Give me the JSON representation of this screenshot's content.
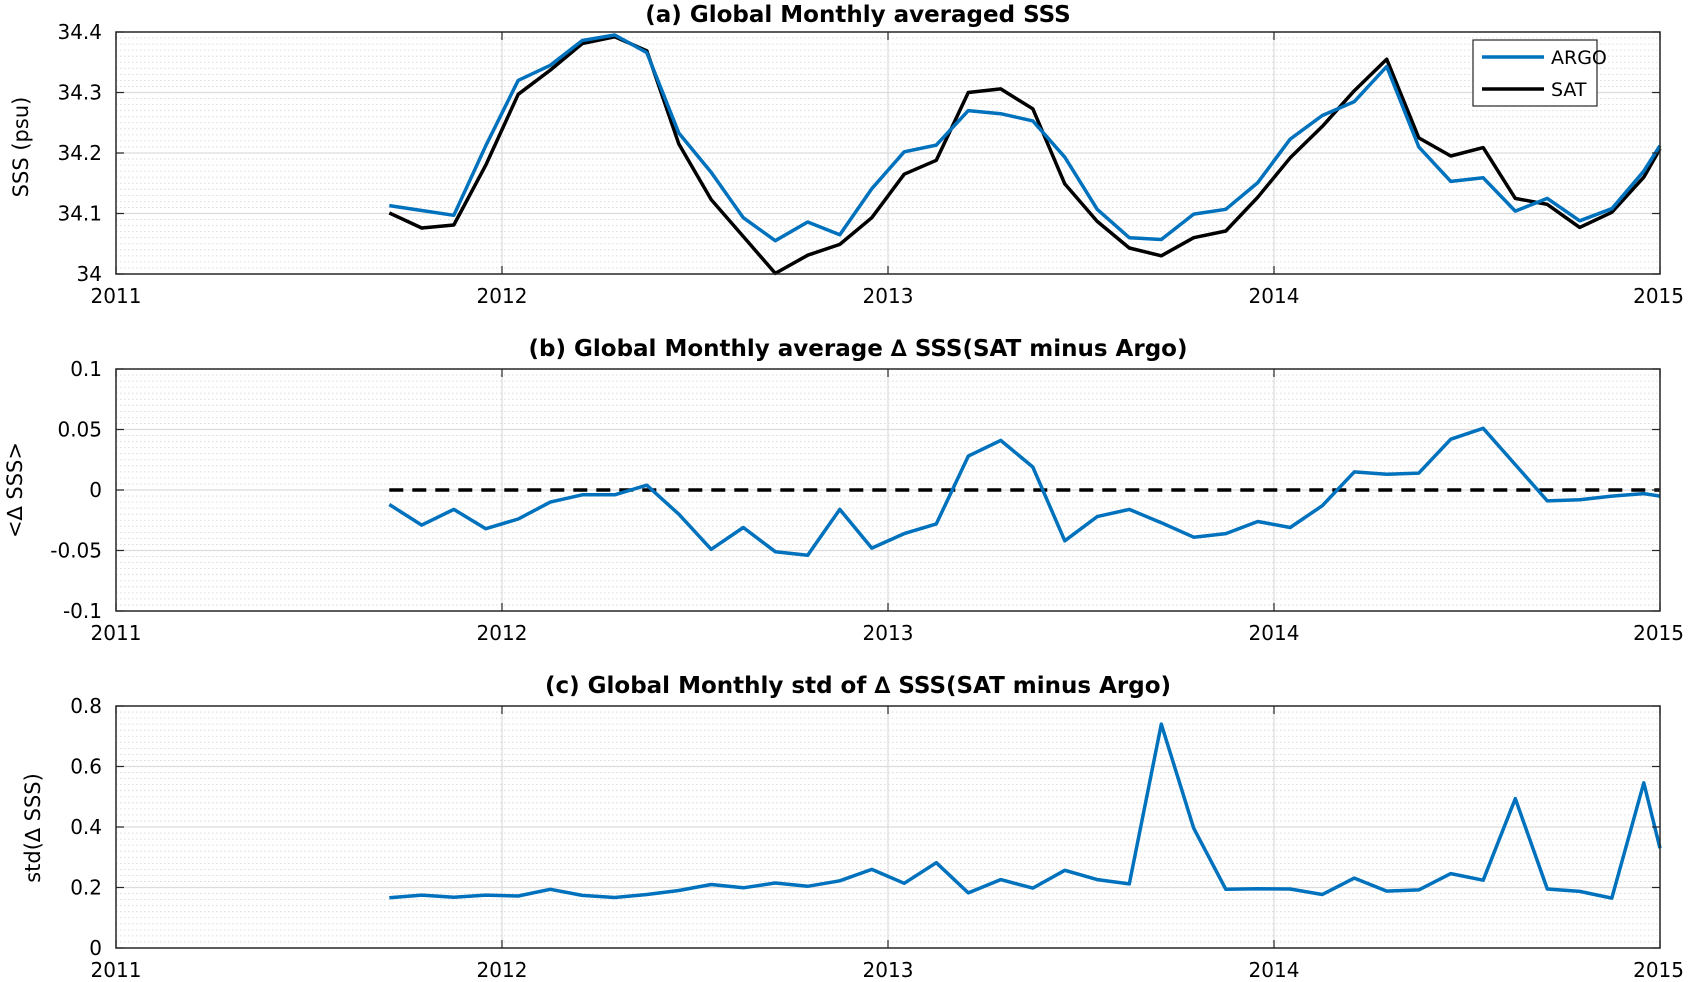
{
  "figure": {
    "colors": {
      "argo": "#0072BD",
      "sat": "#000000",
      "grid": "#d9d9d9",
      "zero_line": "#000000"
    }
  },
  "chart_data": [
    {
      "id": "a",
      "type": "line",
      "title": "(a) Global Monthly averaged SSS",
      "xlabel": "",
      "ylabel": "SSS (psu)",
      "xlim": [
        2011,
        2015
      ],
      "ylim": [
        34.0,
        34.4
      ],
      "xticks": [
        "2011",
        "2012",
        "2013",
        "2014",
        "2015"
      ],
      "yticks": [
        "34",
        "34.1",
        "34.2",
        "34.3",
        "34.4"
      ],
      "grid": true,
      "legend": "top-right",
      "x": [
        2011.708,
        2011.792,
        2011.875,
        2011.958,
        2012.042,
        2012.125,
        2012.208,
        2012.292,
        2012.375,
        2012.458,
        2012.542,
        2012.625,
        2012.708,
        2012.792,
        2012.875,
        2012.958,
        2013.042,
        2013.125,
        2013.208,
        2013.292,
        2013.375,
        2013.458,
        2013.542,
        2013.625,
        2013.708,
        2013.792,
        2013.875,
        2013.958,
        2014.042,
        2014.125,
        2014.208,
        2014.292,
        2014.375,
        2014.458,
        2014.542,
        2014.625,
        2014.708,
        2014.792,
        2014.875,
        2014.958,
        2015.0
      ],
      "series": [
        {
          "name": "ARGO",
          "color": "#0072BD",
          "values": [
            34.113,
            34.105,
            34.097,
            34.212,
            34.32,
            34.345,
            34.386,
            34.395,
            34.366,
            34.233,
            34.168,
            34.093,
            34.055,
            34.086,
            34.065,
            34.141,
            34.202,
            34.213,
            34.27,
            34.265,
            34.253,
            34.193,
            34.107,
            34.06,
            34.057,
            34.099,
            34.107,
            34.151,
            34.223,
            34.262,
            34.285,
            34.343,
            34.21,
            34.153,
            34.159,
            34.104,
            34.125,
            34.088,
            34.108,
            34.17,
            34.212
          ]
        },
        {
          "name": "SAT",
          "color": "#000000",
          "values": [
            34.101,
            34.076,
            34.081,
            34.18,
            34.297,
            34.337,
            34.381,
            34.392,
            34.369,
            34.215,
            34.123,
            34.062,
            34.001,
            34.031,
            34.049,
            34.093,
            34.165,
            34.188,
            34.3,
            34.306,
            34.273,
            34.149,
            34.087,
            34.043,
            34.03,
            34.06,
            34.071,
            34.127,
            34.192,
            34.244,
            34.303,
            34.355,
            34.225,
            34.195,
            34.209,
            34.125,
            34.115,
            34.077,
            34.102,
            34.16,
            34.207
          ]
        }
      ]
    },
    {
      "id": "b",
      "type": "line",
      "title": "(b) Global Monthly average ∆ SSS(SAT minus Argo)",
      "xlabel": "",
      "ylabel": "<∆ SSS>",
      "xlim": [
        2011,
        2015
      ],
      "ylim": [
        -0.1,
        0.1
      ],
      "xticks": [
        "2011",
        "2012",
        "2013",
        "2014",
        "2015"
      ],
      "yticks": [
        "-0.1",
        "-0.05",
        "0",
        "0.05",
        "0.1"
      ],
      "grid": true,
      "reference_line": 0,
      "x": [
        2011.708,
        2011.792,
        2011.875,
        2011.958,
        2012.042,
        2012.125,
        2012.208,
        2012.292,
        2012.375,
        2012.458,
        2012.542,
        2012.625,
        2012.708,
        2012.792,
        2012.875,
        2012.958,
        2013.042,
        2013.125,
        2013.208,
        2013.292,
        2013.375,
        2013.458,
        2013.542,
        2013.625,
        2013.708,
        2013.792,
        2013.875,
        2013.958,
        2014.042,
        2014.125,
        2014.208,
        2014.292,
        2014.375,
        2014.458,
        2014.542,
        2014.625,
        2014.708,
        2014.792,
        2014.875,
        2014.958,
        2015.0
      ],
      "series": [
        {
          "name": "",
          "color": "#0072BD",
          "values": [
            -0.012,
            -0.029,
            -0.016,
            -0.032,
            -0.024,
            -0.01,
            -0.004,
            -0.004,
            0.004,
            -0.02,
            -0.049,
            -0.031,
            -0.051,
            -0.054,
            -0.016,
            -0.048,
            -0.036,
            -0.028,
            0.028,
            0.041,
            0.019,
            -0.042,
            -0.022,
            -0.016,
            -0.027,
            -0.039,
            -0.036,
            -0.026,
            -0.031,
            -0.013,
            0.015,
            0.013,
            0.014,
            0.042,
            0.051,
            0.021,
            -0.009,
            -0.008,
            -0.005,
            -0.003,
            -0.005
          ]
        }
      ]
    },
    {
      "id": "c",
      "type": "line",
      "title": "(c) Global Monthly std of ∆ SSS(SAT minus Argo)",
      "xlabel": "",
      "ylabel": "std(∆ SSS)",
      "xlim": [
        2011,
        2015
      ],
      "ylim": [
        0,
        0.8
      ],
      "xticks": [
        "2011",
        "2012",
        "2013",
        "2014",
        "2015"
      ],
      "yticks": [
        "0",
        "0.2",
        "0.4",
        "0.6",
        "0.8"
      ],
      "grid": true,
      "x": [
        2011.708,
        2011.792,
        2011.875,
        2011.958,
        2012.042,
        2012.125,
        2012.208,
        2012.292,
        2012.375,
        2012.458,
        2012.542,
        2012.625,
        2012.708,
        2012.792,
        2012.875,
        2012.958,
        2013.042,
        2013.125,
        2013.208,
        2013.292,
        2013.375,
        2013.458,
        2013.542,
        2013.625,
        2013.708,
        2013.792,
        2013.875,
        2013.958,
        2014.042,
        2014.125,
        2014.208,
        2014.292,
        2014.375,
        2014.458,
        2014.542,
        2014.625,
        2014.708,
        2014.792,
        2014.875,
        2014.958,
        2015.0
      ],
      "series": [
        {
          "name": "",
          "color": "#0072BD",
          "values": [
            0.166,
            0.175,
            0.168,
            0.175,
            0.172,
            0.194,
            0.174,
            0.167,
            0.177,
            0.19,
            0.21,
            0.199,
            0.215,
            0.204,
            0.222,
            0.26,
            0.214,
            0.282,
            0.182,
            0.226,
            0.198,
            0.257,
            0.226,
            0.212,
            0.74,
            0.396,
            0.194,
            0.196,
            0.195,
            0.177,
            0.231,
            0.188,
            0.192,
            0.246,
            0.224,
            0.494,
            0.195,
            0.187,
            0.165,
            0.546,
            0.33
          ]
        }
      ]
    }
  ]
}
